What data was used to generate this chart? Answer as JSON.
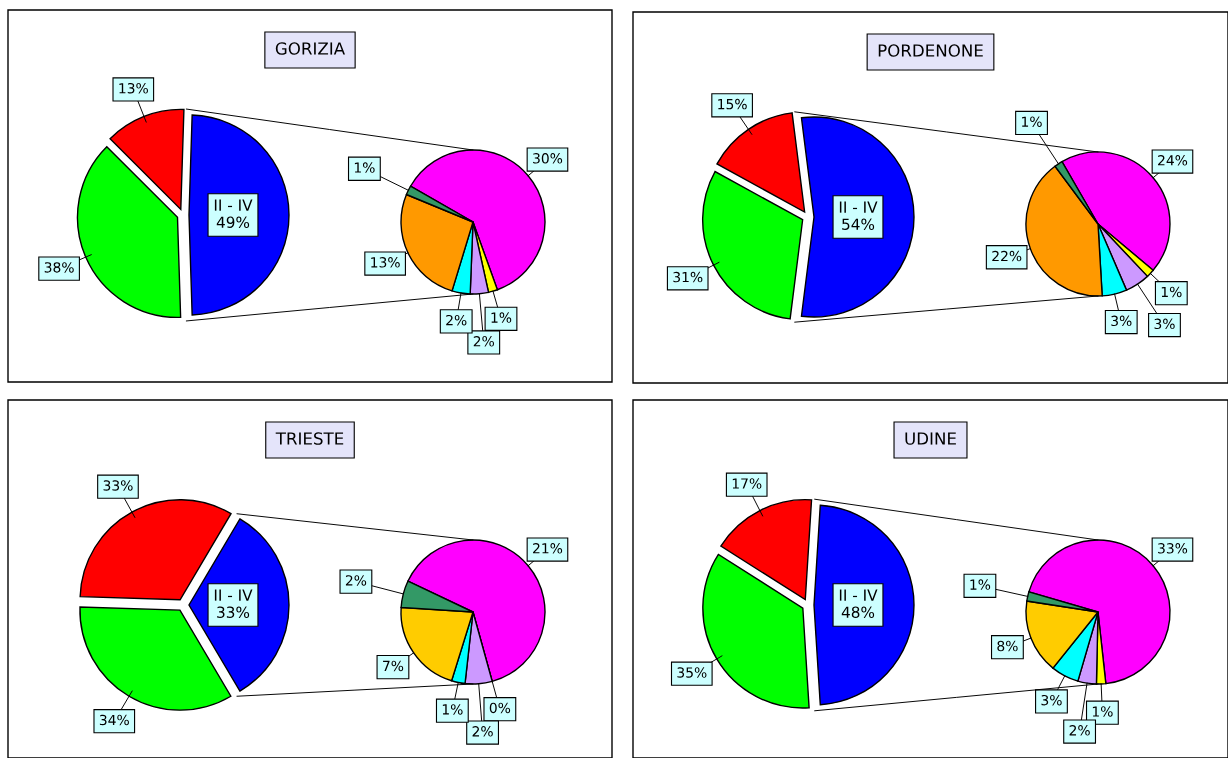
{
  "chart_data": [
    {
      "type": "pie",
      "title": "GORIZIA",
      "categories": [
        "II - IV",
        null,
        null
      ],
      "values": [
        49,
        38,
        13
      ],
      "colors": [
        "#0000ff",
        "#00ff00",
        "#ff0000"
      ],
      "value_labels": [
        "49%",
        "38%",
        "13%"
      ]
    },
    {
      "type": "pie",
      "categories": [
        null,
        null,
        null,
        null,
        null,
        null
      ],
      "values": [
        30,
        1,
        2,
        2,
        13,
        1
      ],
      "colors": [
        "#ff00ff",
        "#ffff00",
        "#cc99ff",
        "#00ffff",
        "#ff9900",
        "#339966"
      ],
      "value_labels": [
        "30%",
        "1%",
        "2%",
        "2%",
        "13%",
        "1%"
      ]
    },
    {
      "type": "pie",
      "title": "PORDENONE",
      "categories": [
        "II - IV",
        null,
        null
      ],
      "values": [
        54,
        31,
        15
      ],
      "colors": [
        "#0000ff",
        "#00ff00",
        "#ff0000"
      ],
      "value_labels": [
        "54%",
        "31%",
        "15%"
      ]
    },
    {
      "type": "pie",
      "categories": [
        null,
        null,
        null,
        null,
        null,
        null
      ],
      "values": [
        24,
        1,
        3,
        3,
        22,
        1
      ],
      "colors": [
        "#ff00ff",
        "#ffff00",
        "#cc99ff",
        "#00ffff",
        "#ff9900",
        "#339966"
      ],
      "value_labels": [
        "24%",
        "1%",
        "3%",
        "3%",
        "22%",
        "1%"
      ]
    },
    {
      "type": "pie",
      "title": "TRIESTE",
      "categories": [
        "II - IV",
        null,
        null
      ],
      "values": [
        33,
        34,
        33
      ],
      "colors": [
        "#0000ff",
        "#00ff00",
        "#ff0000"
      ],
      "value_labels": [
        "33%",
        "34%",
        "33%"
      ]
    },
    {
      "type": "pie",
      "categories": [
        null,
        null,
        null,
        null,
        null,
        null
      ],
      "values": [
        21,
        0,
        2,
        1,
        7,
        2
      ],
      "colors": [
        "#ff00ff",
        "#ffff00",
        "#cc99ff",
        "#00ffff",
        "#ffcc00",
        "#339966"
      ],
      "value_labels": [
        "21%",
        "0%",
        "2%",
        "1%",
        "7%",
        "2%"
      ]
    },
    {
      "type": "pie",
      "title": "UDINE",
      "categories": [
        "II - IV",
        null,
        null
      ],
      "values": [
        48,
        35,
        17
      ],
      "colors": [
        "#0000ff",
        "#00ff00",
        "#ff0000"
      ],
      "value_labels": [
        "48%",
        "35%",
        "17%"
      ]
    },
    {
      "type": "pie",
      "categories": [
        null,
        null,
        null,
        null,
        null,
        null
      ],
      "values": [
        33,
        1,
        2,
        3,
        8,
        1
      ],
      "colors": [
        "#ff00ff",
        "#ffff00",
        "#cc99ff",
        "#00ffff",
        "#ffcc00",
        "#339966"
      ],
      "value_labels": [
        "33%",
        "1%",
        "2%",
        "3%",
        "8%",
        "1%"
      ]
    }
  ]
}
